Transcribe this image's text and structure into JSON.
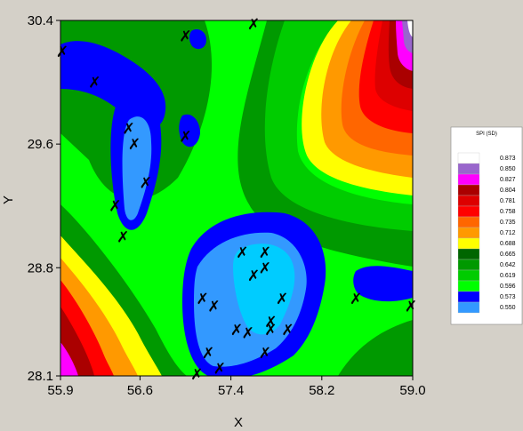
{
  "chart_data": {
    "type": "heatmap",
    "title": "",
    "xlabel": "X",
    "ylabel": "Y",
    "xlim": [
      55.9,
      59.0
    ],
    "ylim": [
      28.1,
      30.4
    ],
    "x_ticks": [
      "55.9",
      "56.6",
      "57.4",
      "58.2",
      "59.0"
    ],
    "y_ticks": [
      "30.4",
      "29.6",
      "28.8",
      "28.1"
    ],
    "legend": {
      "title": "SPI (SD)",
      "levels": [
        {
          "label": "0.873",
          "color": "#ffffff"
        },
        {
          "label": "0.850",
          "color": "#9966cc"
        },
        {
          "label": "0.827",
          "color": "#ff00ff"
        },
        {
          "label": "0.804",
          "color": "#aa0000"
        },
        {
          "label": "0.781",
          "color": "#dd0000"
        },
        {
          "label": "0.758",
          "color": "#ff0000"
        },
        {
          "label": "0.735",
          "color": "#ff6600"
        },
        {
          "label": "0.712",
          "color": "#ff9900"
        },
        {
          "label": "0.688",
          "color": "#ffff00"
        },
        {
          "label": "0.665",
          "color": "#006600"
        },
        {
          "label": "0.642",
          "color": "#009900"
        },
        {
          "label": "0.619",
          "color": "#00cc00"
        },
        {
          "label": "0.596",
          "color": "#00ff00"
        },
        {
          "label": "0.573",
          "color": "#0000ff"
        },
        {
          "label": "0.550",
          "color": "#3399ff"
        }
      ],
      "lowest_color": "#00ccff"
    },
    "stations": [
      [
        57.6,
        30.4
      ],
      [
        55.9,
        30.2
      ],
      [
        56.2,
        30.0
      ],
      [
        57.0,
        30.3
      ],
      [
        56.5,
        29.7
      ],
      [
        56.55,
        29.6
      ],
      [
        56.65,
        29.35
      ],
      [
        56.38,
        29.2
      ],
      [
        56.45,
        29.0
      ],
      [
        57.0,
        29.65
      ],
      [
        57.5,
        28.9
      ],
      [
        57.7,
        28.9
      ],
      [
        57.6,
        28.75
      ],
      [
        57.7,
        28.8
      ],
      [
        57.85,
        28.6
      ],
      [
        57.15,
        28.6
      ],
      [
        57.25,
        28.55
      ],
      [
        57.75,
        28.45
      ],
      [
        57.45,
        28.4
      ],
      [
        57.55,
        28.38
      ],
      [
        57.75,
        28.4
      ],
      [
        57.9,
        28.4
      ],
      [
        57.2,
        28.25
      ],
      [
        57.7,
        28.25
      ],
      [
        57.3,
        28.15
      ],
      [
        57.1,
        28.1
      ],
      [
        58.5,
        28.6
      ],
      [
        59.0,
        28.55
      ]
    ]
  }
}
